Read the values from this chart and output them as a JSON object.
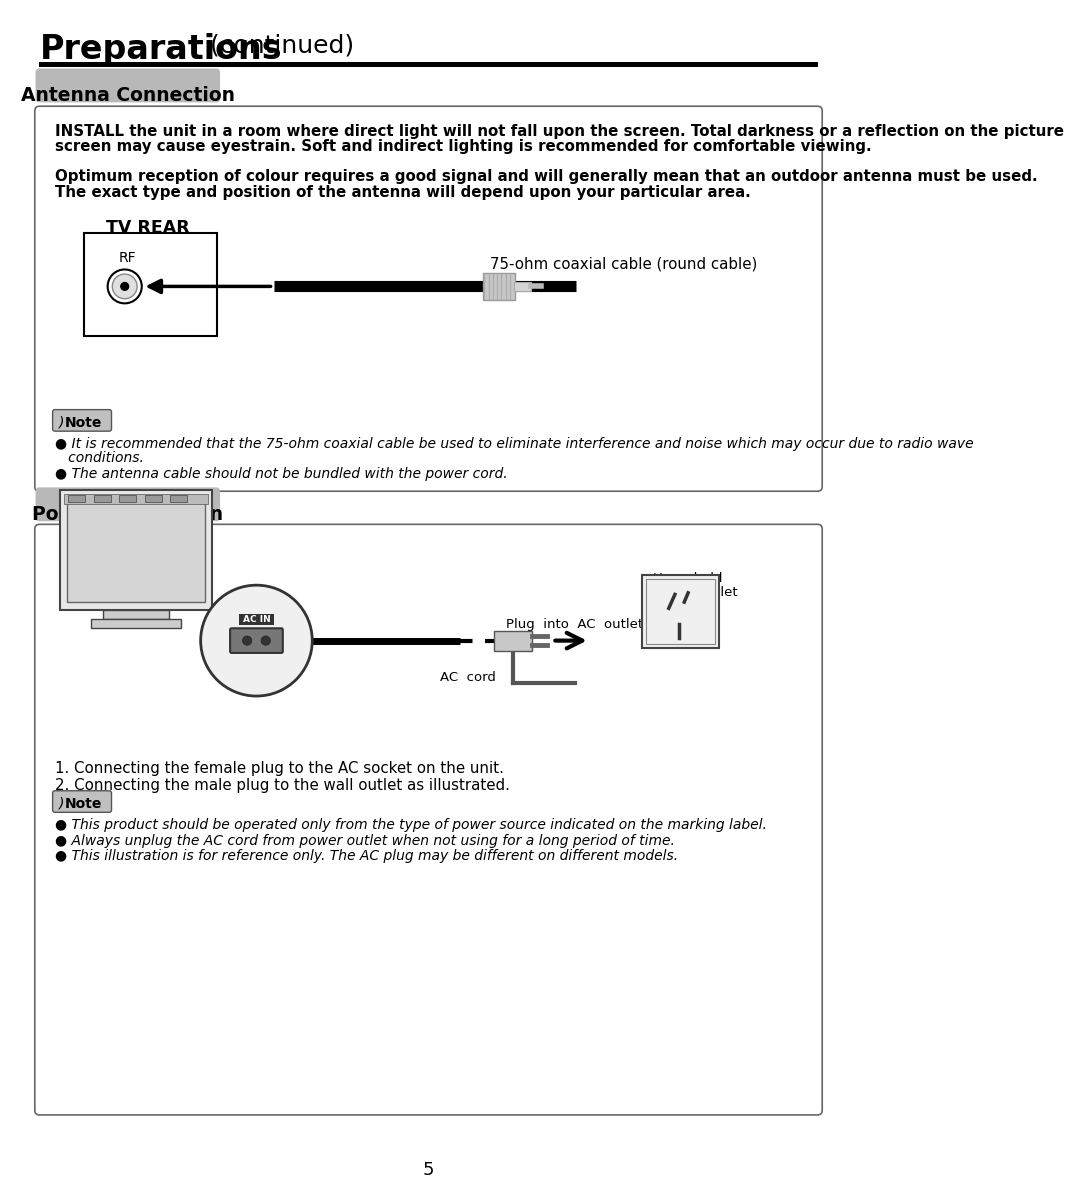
{
  "bg_color": "#ffffff",
  "title_bold": "Preparations",
  "title_normal": " (continued)",
  "section1_label": "Antenna Connection",
  "section2_label": "Power Connection",
  "antenna_box_text1a": "INSTALL the unit in a room where direct light will not fall upon the screen. Total darkness or a reflection on the picture",
  "antenna_box_text1b": "screen may cause eyestrain. Soft and indirect lighting is recommended for comfortable viewing.",
  "antenna_box_text2a": "Optimum reception of colour requires a good signal and will generally mean that an outdoor antenna must be used.",
  "antenna_box_text2b": "The exact type and position of the antenna will depend upon your particular area.",
  "tv_rear_label": "TV REAR",
  "rf_label": "RF",
  "coax_label": "75-ohm coaxial cable (round cable)",
  "note_label": "Note",
  "note1a": "It is recommended that the 75-ohm coaxial cable be used to eliminate interference and noise which may occur due to radio wave",
  "note1b": "   conditions.",
  "note2": "The antenna cable should not be bundled with the power cord.",
  "power_label1": "Plug  into  AC  outlet",
  "power_label2a": "Household",
  "power_label2b": "power outlet",
  "power_label3": "AC  cord",
  "power_step1": "1. Connecting the female plug to the AC socket on the unit.",
  "power_step2": "2. Connecting the male plug to the wall outlet as illustrated.",
  "power_note1": "This product should be operated only from the type of power source indicated on the marking label.",
  "power_note2": "Always unplug the AC cord from power outlet when not using for a long period of time.",
  "power_note3": "This illustration is for reference only. The AC plug may be different on different models.",
  "page_number": "5",
  "section_bg": "#b8b8b8",
  "header_line_color": "#000000"
}
